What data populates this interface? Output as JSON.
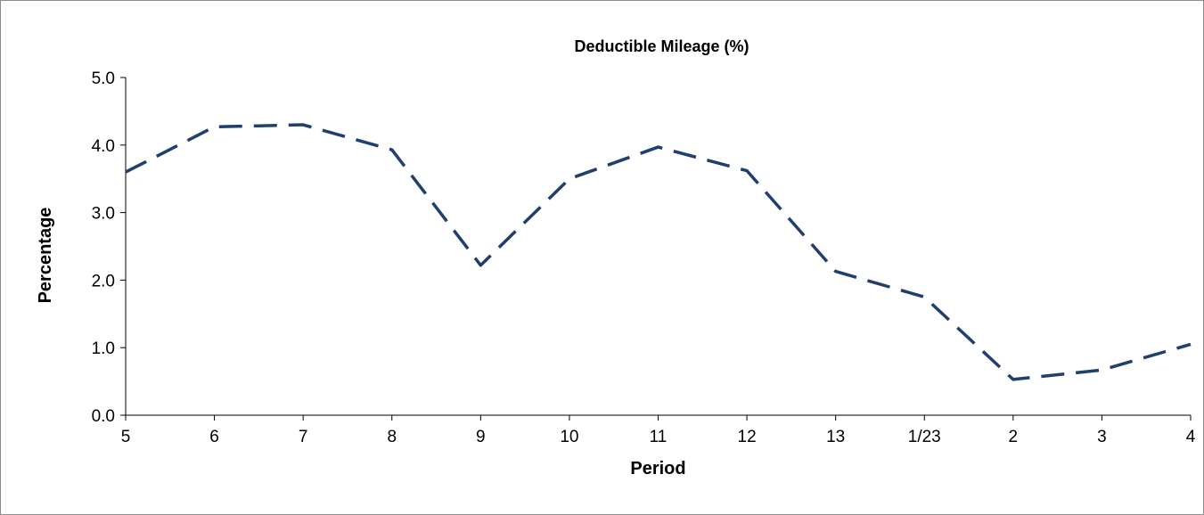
{
  "chart_data": {
    "type": "line",
    "title": "Deductible Mileage (%)",
    "xlabel": "Period",
    "ylabel": "Percentage",
    "categories": [
      "5",
      "6",
      "7",
      "8",
      "9",
      "10",
      "11",
      "12",
      "13",
      "1/23",
      "2",
      "3",
      "4"
    ],
    "series": [
      {
        "values": [
          3.6,
          4.27,
          4.3,
          3.93,
          2.22,
          3.5,
          3.97,
          3.62,
          2.13,
          1.75,
          0.53,
          0.67,
          1.05
        ],
        "color": "#1f3f6e",
        "style": "dashed"
      }
    ],
    "ylim": [
      0,
      5
    ],
    "yticks": [
      "0.0",
      "1.0",
      "2.0",
      "3.0",
      "4.0",
      "5.0"
    ],
    "grid": false,
    "legend": "none"
  }
}
